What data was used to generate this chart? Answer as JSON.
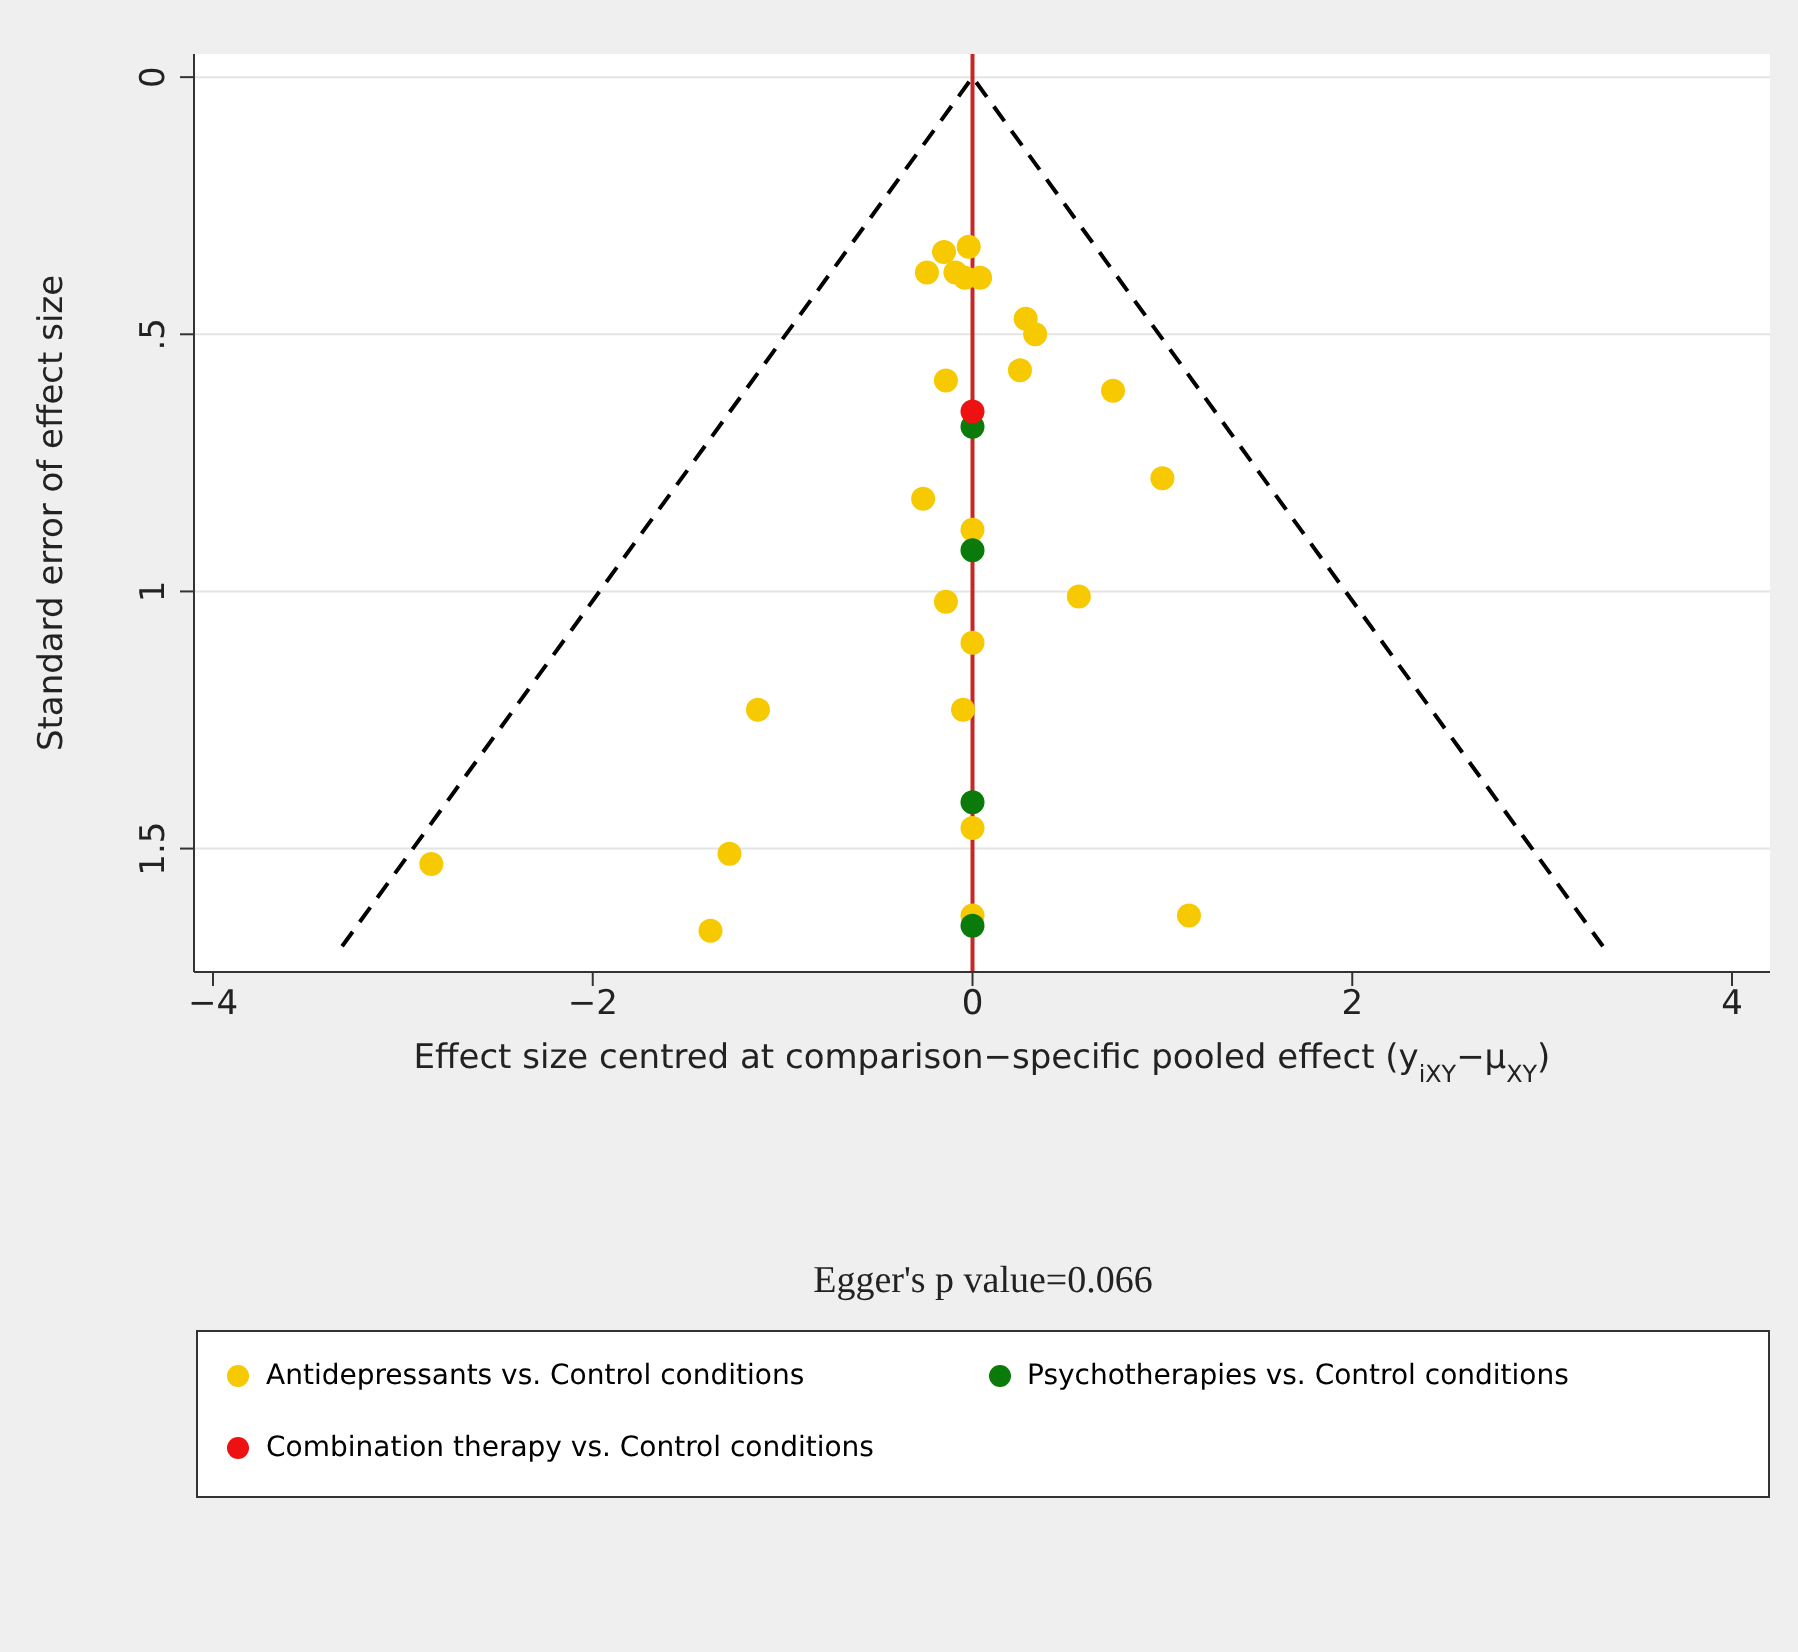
{
  "chart_data": {
    "type": "scatter",
    "xlabel": "Effect size centred at comparison−specific pooled effect (y$_{iXY}$−μ$_{XY}$)",
    "ylabel": "Standard error of effect size",
    "annotations": [
      "Egger's p value=0.066"
    ],
    "xlim": [
      -4.1,
      4.2
    ],
    "xticks": [
      {
        "value": -4,
        "label": "−4"
      },
      {
        "value": -2,
        "label": "−2"
      },
      0,
      2,
      4
    ],
    "ylim": [
      1.74,
      -0.045
    ],
    "yticks": [
      0,
      {
        "value": 0.5,
        "label": ".5"
      },
      1,
      1.5
    ],
    "grid": "y",
    "legend": "bottom",
    "marker": "circle",
    "ref_lines": [
      {
        "axis": "x",
        "value": 0,
        "color": "#c62828"
      }
    ],
    "series": [
      {
        "name": "Antidepressants vs. Control conditions",
        "color": "#f7c900",
        "x": [
          -0.02,
          -0.15,
          -0.24,
          -0.09,
          -0.04,
          0.04,
          0.28,
          0.33,
          -0.14,
          0.25,
          0.74,
          1.0,
          -0.26,
          0,
          -0.14,
          0.56,
          0,
          -0.05,
          0,
          0,
          1.14,
          -1.13,
          -2.85,
          -1.28,
          -1.38
        ],
        "values": [
          0.33,
          0.34,
          0.38,
          0.38,
          0.39,
          0.39,
          0.47,
          0.5,
          0.59,
          0.57,
          0.61,
          0.78,
          0.82,
          0.88,
          1.02,
          1.01,
          1.1,
          1.23,
          1.46,
          1.63,
          1.63,
          1.23,
          1.53,
          1.51,
          1.66
        ]
      },
      {
        "name": "Psychotherapies vs. Control conditions",
        "color": "#0a7a0a",
        "x": [
          0,
          0,
          0,
          0
        ],
        "values": [
          0.68,
          0.92,
          1.41,
          1.65
        ]
      },
      {
        "name": "Combination therapy vs. Control conditions",
        "color": "#ee1111",
        "x": [
          0
        ],
        "values": [
          0.65
        ]
      },
      {
        "type": "line",
        "color": "#000000",
        "line_style": "dashed",
        "marker": "none",
        "x": [
          -3.32,
          0,
          3.32
        ],
        "values": [
          1.69,
          0,
          1.69
        ]
      }
    ]
  }
}
